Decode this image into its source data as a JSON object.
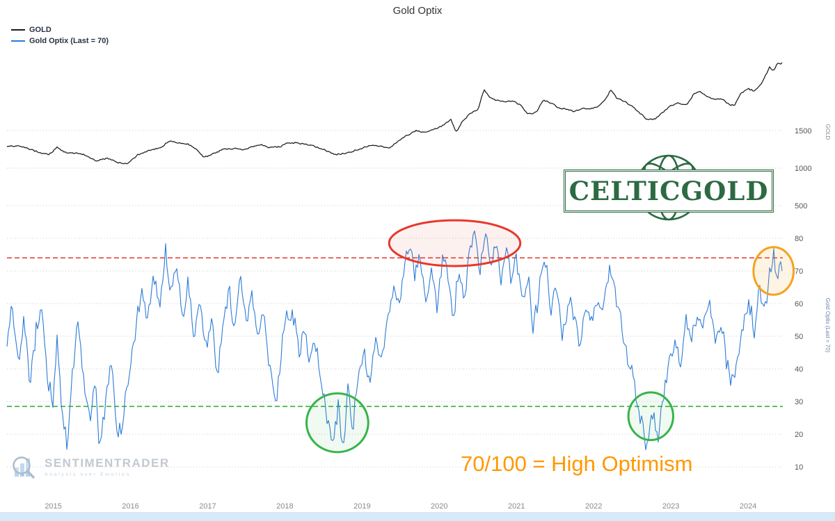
{
  "title": "Gold Optix",
  "legend": [
    {
      "label": "GOLD",
      "color": "#1a1a1a"
    },
    {
      "label": "Gold Optix (Last = 70)",
      "color": "#2b7bd6"
    }
  ],
  "watermarks": {
    "celticgold": "CELTICGOLD",
    "celticgold_color": "#2c6a42",
    "sentimentrader": "SENTIMENTRADER",
    "sentimentrader_tagline": "Analysis over Emotion"
  },
  "note": {
    "text": "70/100 = High Optimism",
    "color": "#ff9800"
  },
  "chart_data": {
    "type": "line",
    "title": "Gold Optix",
    "grid": "dotted-horizontal",
    "legend_position": "top-left",
    "x_range": [
      2014.4,
      2024.45
    ],
    "x_ticks": [
      2015,
      2016,
      2017,
      2018,
      2019,
      2020,
      2021,
      2022,
      2023,
      2024
    ],
    "panels": [
      {
        "name": "GOLD",
        "ylabel": "GOLD",
        "yticks": [
          1500,
          1000,
          500
        ],
        "color": "#1a1a1a",
        "series": {
          "name": "GOLD",
          "x": [
            2014.4,
            2014.55,
            2014.7,
            2014.85,
            2014.95,
            2015.05,
            2015.15,
            2015.3,
            2015.4,
            2015.55,
            2015.7,
            2015.85,
            2015.95,
            2016.1,
            2016.25,
            2016.4,
            2016.5,
            2016.6,
            2016.75,
            2016.85,
            2016.95,
            2017.05,
            2017.2,
            2017.35,
            2017.45,
            2017.6,
            2017.7,
            2017.8,
            2017.95,
            2018.05,
            2018.2,
            2018.35,
            2018.5,
            2018.65,
            2018.8,
            2018.95,
            2019.1,
            2019.25,
            2019.35,
            2019.45,
            2019.55,
            2019.7,
            2019.8,
            2019.95,
            2020.05,
            2020.15,
            2020.22,
            2020.3,
            2020.4,
            2020.5,
            2020.58,
            2020.65,
            2020.75,
            2020.85,
            2020.95,
            2021.05,
            2021.15,
            2021.25,
            2021.35,
            2021.45,
            2021.55,
            2021.65,
            2021.75,
            2021.85,
            2021.95,
            2022.05,
            2022.15,
            2022.22,
            2022.3,
            2022.4,
            2022.5,
            2022.6,
            2022.7,
            2022.8,
            2022.9,
            2023.0,
            2023.1,
            2023.2,
            2023.3,
            2023.37,
            2023.45,
            2023.55,
            2023.65,
            2023.75,
            2023.82,
            2023.9,
            2024.0,
            2024.07,
            2024.14,
            2024.2,
            2024.28,
            2024.33,
            2024.38,
            2024.42,
            2024.45
          ],
          "values": [
            1290,
            1300,
            1250,
            1200,
            1185,
            1275,
            1210,
            1200,
            1180,
            1100,
            1130,
            1070,
            1060,
            1180,
            1240,
            1280,
            1360,
            1340,
            1320,
            1250,
            1140,
            1180,
            1250,
            1260,
            1240,
            1290,
            1310,
            1270,
            1290,
            1340,
            1330,
            1300,
            1250,
            1180,
            1200,
            1250,
            1300,
            1290,
            1270,
            1340,
            1420,
            1500,
            1480,
            1520,
            1570,
            1650,
            1480,
            1620,
            1730,
            1780,
            2050,
            1950,
            1900,
            1880,
            1900,
            1840,
            1720,
            1740,
            1900,
            1870,
            1800,
            1790,
            1750,
            1800,
            1790,
            1820,
            1910,
            2040,
            1930,
            1890,
            1820,
            1730,
            1640,
            1660,
            1750,
            1830,
            1870,
            1840,
            1990,
            2030,
            1960,
            1920,
            1930,
            1850,
            1830,
            1990,
            2060,
            2030,
            2080,
            2180,
            2350,
            2300,
            2400,
            2380,
            2420
          ]
        }
      },
      {
        "name": "Gold Optix",
        "ylabel": "Gold Optix (Last = 70)",
        "yticks": [
          80,
          70,
          60,
          50,
          40,
          30,
          20,
          10
        ],
        "last_value": 70,
        "color": "#2b7bd6",
        "thresholds": [
          {
            "value": 74,
            "color": "#e02417",
            "style": "dashed"
          },
          {
            "value": 28.5,
            "color": "#12a312",
            "style": "dashed"
          }
        ],
        "series": {
          "name": "Gold Optix",
          "x": [
            2014.4,
            2014.47,
            2014.55,
            2014.62,
            2014.7,
            2014.78,
            2014.85,
            2014.92,
            2015.0,
            2015.05,
            2015.12,
            2015.18,
            2015.25,
            2015.32,
            2015.4,
            2015.48,
            2015.55,
            2015.6,
            2015.68,
            2015.75,
            2015.82,
            2015.88,
            2015.95,
            2016.05,
            2016.15,
            2016.22,
            2016.3,
            2016.38,
            2016.45,
            2016.52,
            2016.6,
            2016.68,
            2016.75,
            2016.82,
            2016.9,
            2016.97,
            2017.05,
            2017.12,
            2017.2,
            2017.28,
            2017.35,
            2017.42,
            2017.5,
            2017.58,
            2017.65,
            2017.72,
            2017.8,
            2017.88,
            2017.95,
            2018.02,
            2018.1,
            2018.18,
            2018.25,
            2018.32,
            2018.4,
            2018.48,
            2018.55,
            2018.62,
            2018.7,
            2018.75,
            2018.82,
            2018.88,
            2018.95,
            2019.02,
            2019.1,
            2019.18,
            2019.25,
            2019.32,
            2019.4,
            2019.48,
            2019.55,
            2019.62,
            2019.68,
            2019.75,
            2019.82,
            2019.9,
            2019.97,
            2020.05,
            2020.12,
            2020.18,
            2020.25,
            2020.32,
            2020.4,
            2020.47,
            2020.53,
            2020.6,
            2020.67,
            2020.73,
            2020.8,
            2020.87,
            2020.93,
            2021.0,
            2021.07,
            2021.15,
            2021.22,
            2021.3,
            2021.38,
            2021.45,
            2021.52,
            2021.6,
            2021.68,
            2021.75,
            2021.82,
            2021.9,
            2021.97,
            2022.05,
            2022.12,
            2022.2,
            2022.28,
            2022.35,
            2022.42,
            2022.5,
            2022.57,
            2022.63,
            2022.7,
            2022.77,
            2022.83,
            2022.9,
            2022.97,
            2023.05,
            2023.12,
            2023.2,
            2023.28,
            2023.35,
            2023.42,
            2023.5,
            2023.57,
            2023.65,
            2023.72,
            2023.8,
            2023.87,
            2023.95,
            2024.02,
            2024.08,
            2024.15,
            2024.22,
            2024.28,
            2024.33,
            2024.38,
            2024.42,
            2024.45
          ],
          "values": [
            48,
            60,
            42,
            55,
            35,
            52,
            60,
            38,
            30,
            48,
            25,
            17,
            40,
            55,
            35,
            25,
            38,
            15,
            30,
            42,
            22,
            20,
            35,
            50,
            65,
            55,
            70,
            60,
            77,
            62,
            72,
            55,
            68,
            48,
            60,
            45,
            55,
            38,
            52,
            65,
            50,
            67,
            55,
            62,
            48,
            58,
            40,
            28,
            45,
            55,
            58,
            45,
            52,
            42,
            48,
            35,
            25,
            17,
            30,
            14,
            35,
            22,
            40,
            45,
            35,
            48,
            42,
            55,
            65,
            58,
            72,
            80,
            68,
            76,
            62,
            70,
            58,
            75,
            68,
            55,
            70,
            60,
            78,
            82,
            70,
            83,
            72,
            80,
            65,
            77,
            68,
            75,
            60,
            68,
            52,
            65,
            72,
            58,
            66,
            50,
            62,
            55,
            48,
            60,
            55,
            62,
            58,
            70,
            62,
            55,
            45,
            38,
            28,
            22,
            15,
            28,
            18,
            32,
            40,
            48,
            42,
            55,
            50,
            58,
            52,
            60,
            50,
            55,
            42,
            35,
            45,
            55,
            60,
            52,
            65,
            58,
            70,
            77,
            66,
            72,
            70
          ]
        }
      }
    ],
    "annotations": [
      {
        "name": "high-optimism-ellipse",
        "panel": 1,
        "t": 2020.2,
        "v": 78.5,
        "rt": 0.85,
        "rv": 7,
        "color": "#e8372c",
        "fill": "rgba(232,55,44,0.07)"
      },
      {
        "name": "low-optimism-2018-circle",
        "panel": 1,
        "t": 2018.68,
        "v": 23.5,
        "rt": 0.4,
        "rv": 9,
        "color": "#35b44a",
        "fill": "rgba(53,180,74,0.07)"
      },
      {
        "name": "low-optimism-2022-circle",
        "panel": 1,
        "t": 2022.74,
        "v": 25.5,
        "rt": 0.29,
        "rv": 7.3,
        "color": "#35b44a",
        "fill": "rgba(53,180,74,0.07)"
      },
      {
        "name": "current-level-circle",
        "panel": 1,
        "t": 2024.33,
        "v": 70,
        "rt": 0.26,
        "rv": 7.3,
        "color": "#f6a21d",
        "fill": "rgba(246,162,29,0.12)"
      }
    ]
  }
}
